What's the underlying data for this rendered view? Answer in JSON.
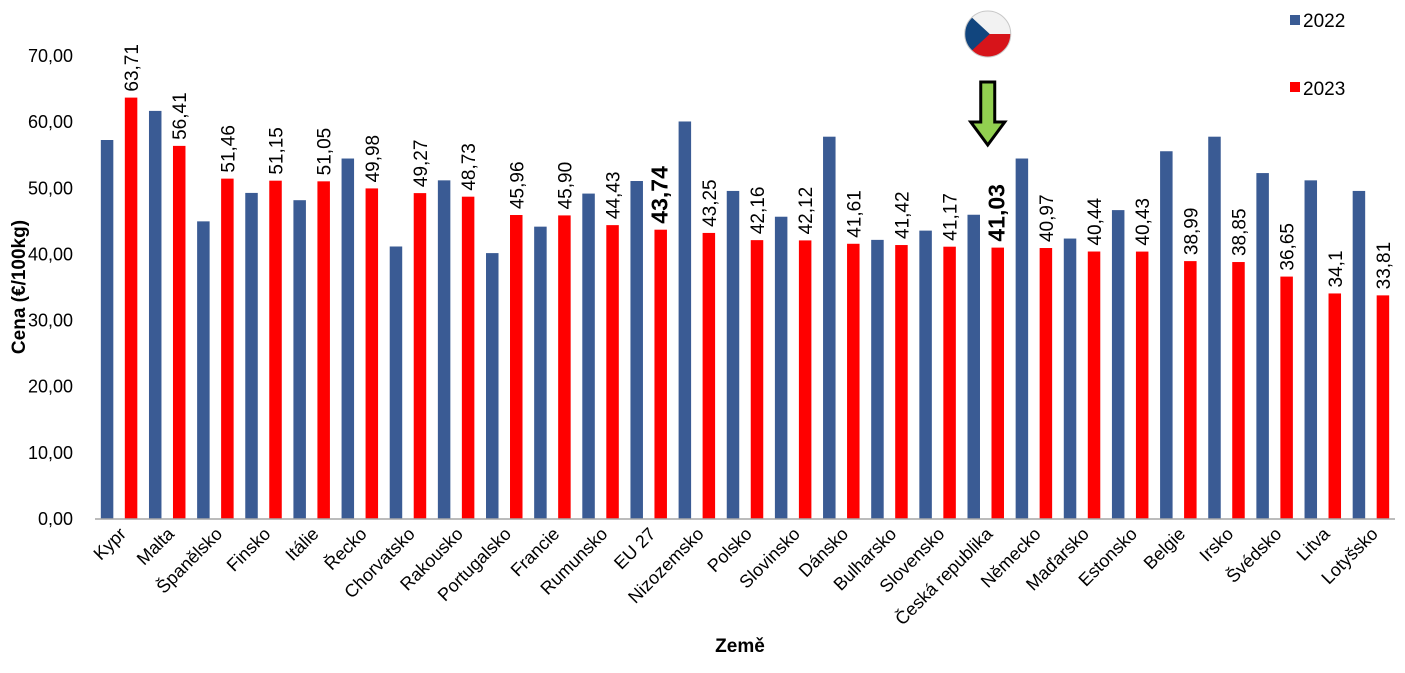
{
  "colors": {
    "series_2022": "#3A5B94",
    "series_2023": "#FF0000",
    "axis": "#A6A6A6",
    "arrow_fill": "#92D050",
    "arrow_stroke": "#000000"
  },
  "icons": {
    "flag": "czech-flag-icon",
    "arrow": "down-arrow-icon"
  },
  "chart_data": {
    "type": "bar",
    "title": "",
    "xlabel": "Země",
    "ylabel": "Cena (€/100kg)",
    "ylim": [
      0,
      70
    ],
    "yticks": [
      0,
      10,
      20,
      30,
      40,
      50,
      60,
      70
    ],
    "ytick_labels": [
      "0,00",
      "10,00",
      "20,00",
      "30,00",
      "40,00",
      "50,00",
      "60,00",
      "70,00"
    ],
    "grid": false,
    "legend_position": "top-right",
    "highlight_category": "Česká republika",
    "categories": [
      "Kypr",
      "Malta",
      "Španělsko",
      "Finsko",
      "Itálie",
      "Řecko",
      "Chorvatsko",
      "Rakousko",
      "Portugalsko",
      "Francie",
      "Rumunsko",
      "EU 27",
      "Nizozemsko",
      "Polsko",
      "Slovinsko",
      "Dánsko",
      "Bulharsko",
      "Slovensko",
      "Česká republika",
      "Německo",
      "Maďarsko",
      "Estonsko",
      "Belgie",
      "Irsko",
      "Švédsko",
      "Litva",
      "Lotyšsko"
    ],
    "series": [
      {
        "name": "2022",
        "values": [
          57.3,
          61.7,
          45.0,
          49.3,
          48.2,
          54.5,
          41.2,
          51.2,
          40.2,
          44.2,
          49.2,
          51.1,
          60.1,
          49.6,
          45.7,
          57.8,
          42.2,
          43.6,
          46.0,
          54.5,
          42.4,
          46.7,
          55.6,
          57.8,
          52.3,
          51.2,
          49.6
        ]
      },
      {
        "name": "2023",
        "values": [
          63.71,
          56.41,
          51.46,
          51.15,
          51.05,
          49.98,
          49.27,
          48.73,
          45.96,
          45.9,
          44.43,
          43.74,
          43.25,
          42.16,
          42.12,
          41.61,
          41.42,
          41.17,
          41.03,
          40.97,
          40.44,
          40.43,
          38.99,
          38.85,
          36.65,
          34.1,
          33.81
        ]
      }
    ],
    "data_labels_2023": [
      "63,71",
      "56,41",
      "51,46",
      "51,15",
      "51,05",
      "49,98",
      "49,27",
      "48,73",
      "45,96",
      "45,90",
      "44,43",
      "43,74",
      "43,25",
      "42,16",
      "42,12",
      "41,61",
      "41,42",
      "41,17",
      "41,03",
      "40,97",
      "40,44",
      "40,43",
      "38,99",
      "38,85",
      "36,65",
      "34,1",
      "33,81"
    ],
    "bold_labels": [
      "EU 27",
      "Česká republika"
    ]
  }
}
